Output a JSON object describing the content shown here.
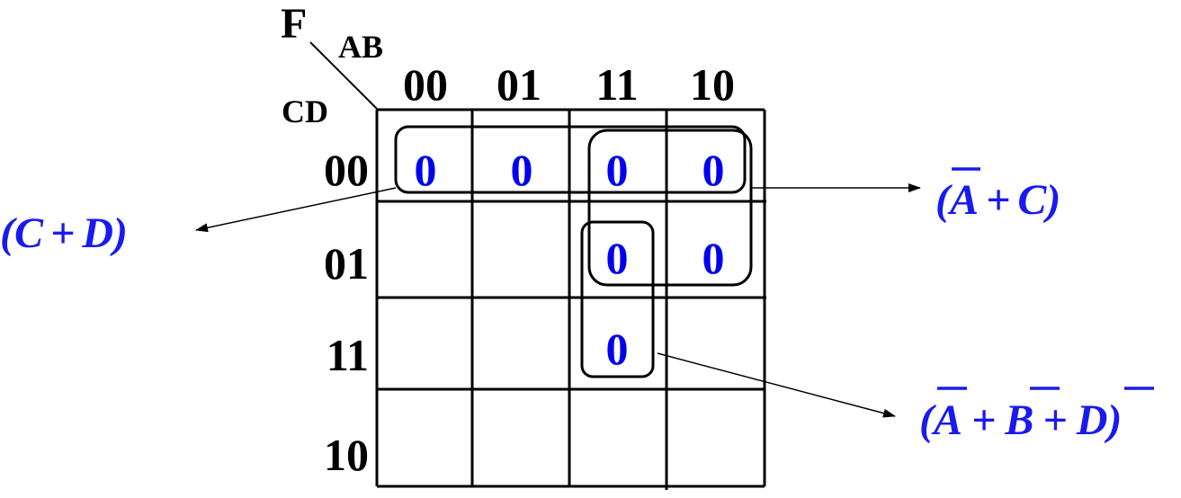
{
  "function_label": "F",
  "ab_label": "AB",
  "cd_label": "CD",
  "col_headers": [
    "00",
    "01",
    "11",
    "10"
  ],
  "row_headers": [
    "00",
    "01",
    "11",
    "10"
  ],
  "cells": {
    "r0c0": "0",
    "r0c1": "0",
    "r0c2": "0",
    "r0c3": "0",
    "r1c2": "0",
    "r1c3": "0",
    "r2c2": "0"
  },
  "terms": {
    "t1": {
      "open": "(",
      "p1": "C",
      "plus": "+",
      "p2": "D",
      "close": ")"
    },
    "t2": {
      "open": "(",
      "p1": "A",
      "plus": "+",
      "p2": "C",
      "close": ")"
    },
    "t3": {
      "open": "(",
      "p1": "A",
      "plus1": "+",
      "p2": "B",
      "plus2": "+",
      "p3": "D",
      "close": ")"
    }
  },
  "colors": {
    "cell_value": "#0000ee",
    "expression": "#1a1aee",
    "ink": "#000000"
  }
}
